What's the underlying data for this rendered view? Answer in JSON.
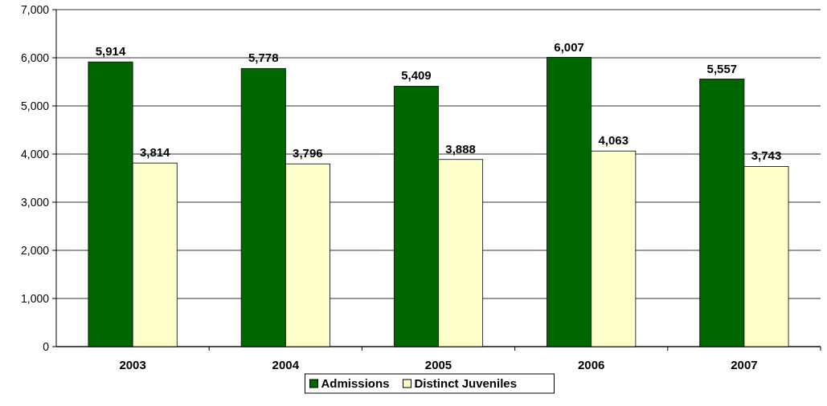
{
  "chart_data": {
    "type": "bar",
    "categories": [
      "2003",
      "2004",
      "2005",
      "2006",
      "2007"
    ],
    "series": [
      {
        "name": "Admissions",
        "color": "#006600",
        "values": [
          5914,
          5778,
          5409,
          6007,
          5557
        ],
        "value_labels": [
          "5,914",
          "5,778",
          "5,409",
          "6,007",
          "5,557"
        ]
      },
      {
        "name": "Distinct Juveniles",
        "color": "#ffffcc",
        "values": [
          3814,
          3796,
          3888,
          4063,
          3743
        ],
        "value_labels": [
          "3,814",
          "3,796",
          "3,888",
          "4,063",
          "3,743"
        ]
      }
    ],
    "ylim": [
      0,
      7000
    ],
    "yticks": [
      {
        "value": 0,
        "label": "0"
      },
      {
        "value": 1000,
        "label": "1,000"
      },
      {
        "value": 2000,
        "label": "2,000"
      },
      {
        "value": 3000,
        "label": "3,000"
      },
      {
        "value": 4000,
        "label": "4,000"
      },
      {
        "value": 5000,
        "label": "5,000"
      },
      {
        "value": 6000,
        "label": "6,000"
      },
      {
        "value": 7000,
        "label": "7,000"
      }
    ],
    "grid": "y",
    "legend": "bottom"
  }
}
